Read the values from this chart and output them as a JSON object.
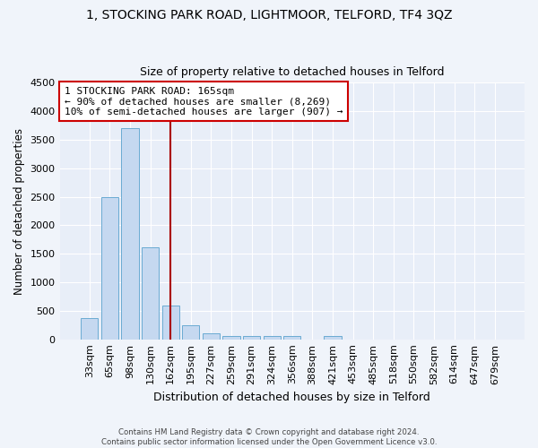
{
  "title": "1, STOCKING PARK ROAD, LIGHTMOOR, TELFORD, TF4 3QZ",
  "subtitle": "Size of property relative to detached houses in Telford",
  "xlabel": "Distribution of detached houses by size in Telford",
  "ylabel": "Number of detached properties",
  "categories": [
    "33sqm",
    "65sqm",
    "98sqm",
    "130sqm",
    "162sqm",
    "195sqm",
    "227sqm",
    "259sqm",
    "291sqm",
    "324sqm",
    "356sqm",
    "388sqm",
    "421sqm",
    "453sqm",
    "485sqm",
    "518sqm",
    "550sqm",
    "582sqm",
    "614sqm",
    "647sqm",
    "679sqm"
  ],
  "values": [
    375,
    2500,
    3700,
    1620,
    600,
    240,
    110,
    65,
    50,
    50,
    50,
    0,
    65,
    0,
    0,
    0,
    0,
    0,
    0,
    0,
    0
  ],
  "bar_color": "#c5d8f0",
  "bar_edge_color": "#6aabd2",
  "vline_color": "#aa0000",
  "vline_pos": 2.5,
  "annotation_text": "1 STOCKING PARK ROAD: 165sqm\n← 90% of detached houses are smaller (8,269)\n10% of semi-detached houses are larger (907) →",
  "annotation_box_color": "#cc0000",
  "ylim": [
    0,
    4500
  ],
  "yticks": [
    0,
    500,
    1000,
    1500,
    2000,
    2500,
    3000,
    3500,
    4000,
    4500
  ],
  "bg_color": "#f0f4fa",
  "plot_bg_color": "#e8eef8",
  "footer": "Contains HM Land Registry data © Crown copyright and database right 2024.\nContains public sector information licensed under the Open Government Licence v3.0.",
  "title_fontsize": 10,
  "subtitle_fontsize": 9,
  "xlabel_fontsize": 9,
  "ylabel_fontsize": 8.5,
  "tick_fontsize": 8,
  "annotation_fontsize": 8
}
